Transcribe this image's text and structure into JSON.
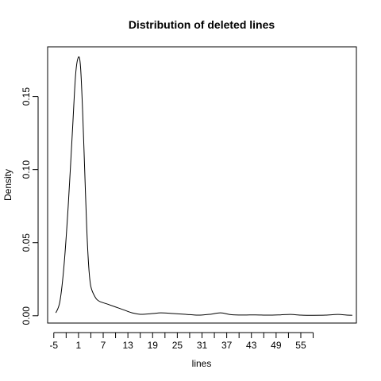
{
  "chart_data": {
    "type": "line",
    "title": "Distribution of deleted lines",
    "xlabel": "lines",
    "ylabel": "Density",
    "xlim": [
      -6.5,
      68.5
    ],
    "ylim": [
      -0.005,
      0.184
    ],
    "x_ticks": [
      -5,
      -2,
      1,
      4,
      7,
      10,
      13,
      16,
      19,
      22,
      25,
      28,
      31,
      34,
      37,
      40,
      43,
      46,
      49,
      52,
      55,
      58
    ],
    "x_tick_labels": [
      "-5",
      "",
      "1",
      "",
      "7",
      "",
      "13",
      "",
      "19",
      "",
      "25",
      "",
      "31",
      "",
      "37",
      "",
      "43",
      "",
      "49",
      "",
      "55",
      ""
    ],
    "y_ticks": [
      0.0,
      0.05,
      0.1,
      0.15
    ],
    "y_tick_labels": [
      "0.00",
      "0.05",
      "0.10",
      "0.15"
    ],
    "grid": false,
    "series": [
      {
        "points": [
          [
            -4.5,
            0.002
          ],
          [
            -3.5,
            0.01
          ],
          [
            -2.5,
            0.035
          ],
          [
            -1.5,
            0.075
          ],
          [
            -0.5,
            0.125
          ],
          [
            0.3,
            0.165
          ],
          [
            1.0,
            0.177
          ],
          [
            1.5,
            0.17
          ],
          [
            2.0,
            0.14
          ],
          [
            2.5,
            0.1
          ],
          [
            3.0,
            0.06
          ],
          [
            3.5,
            0.033
          ],
          [
            4.0,
            0.02
          ],
          [
            5.0,
            0.013
          ],
          [
            6.0,
            0.01
          ],
          [
            8.0,
            0.008
          ],
          [
            10.0,
            0.006
          ],
          [
            12.0,
            0.004
          ],
          [
            14.0,
            0.002
          ],
          [
            16.0,
            0.001
          ],
          [
            19.0,
            0.0015
          ],
          [
            21.0,
            0.002
          ],
          [
            24.0,
            0.0015
          ],
          [
            27.0,
            0.001
          ],
          [
            30.0,
            0.0004
          ],
          [
            33.0,
            0.001
          ],
          [
            35.5,
            0.002
          ],
          [
            38.0,
            0.0008
          ],
          [
            41.0,
            0.0005
          ],
          [
            44.0,
            0.0006
          ],
          [
            47.0,
            0.0004
          ],
          [
            50.0,
            0.0006
          ],
          [
            52.5,
            0.0009
          ],
          [
            55.0,
            0.0004
          ],
          [
            58.0,
            0.0003
          ],
          [
            61.0,
            0.0004
          ],
          [
            64.0,
            0.0009
          ],
          [
            66.0,
            0.0005
          ],
          [
            67.5,
            0.0003
          ]
        ]
      }
    ]
  }
}
